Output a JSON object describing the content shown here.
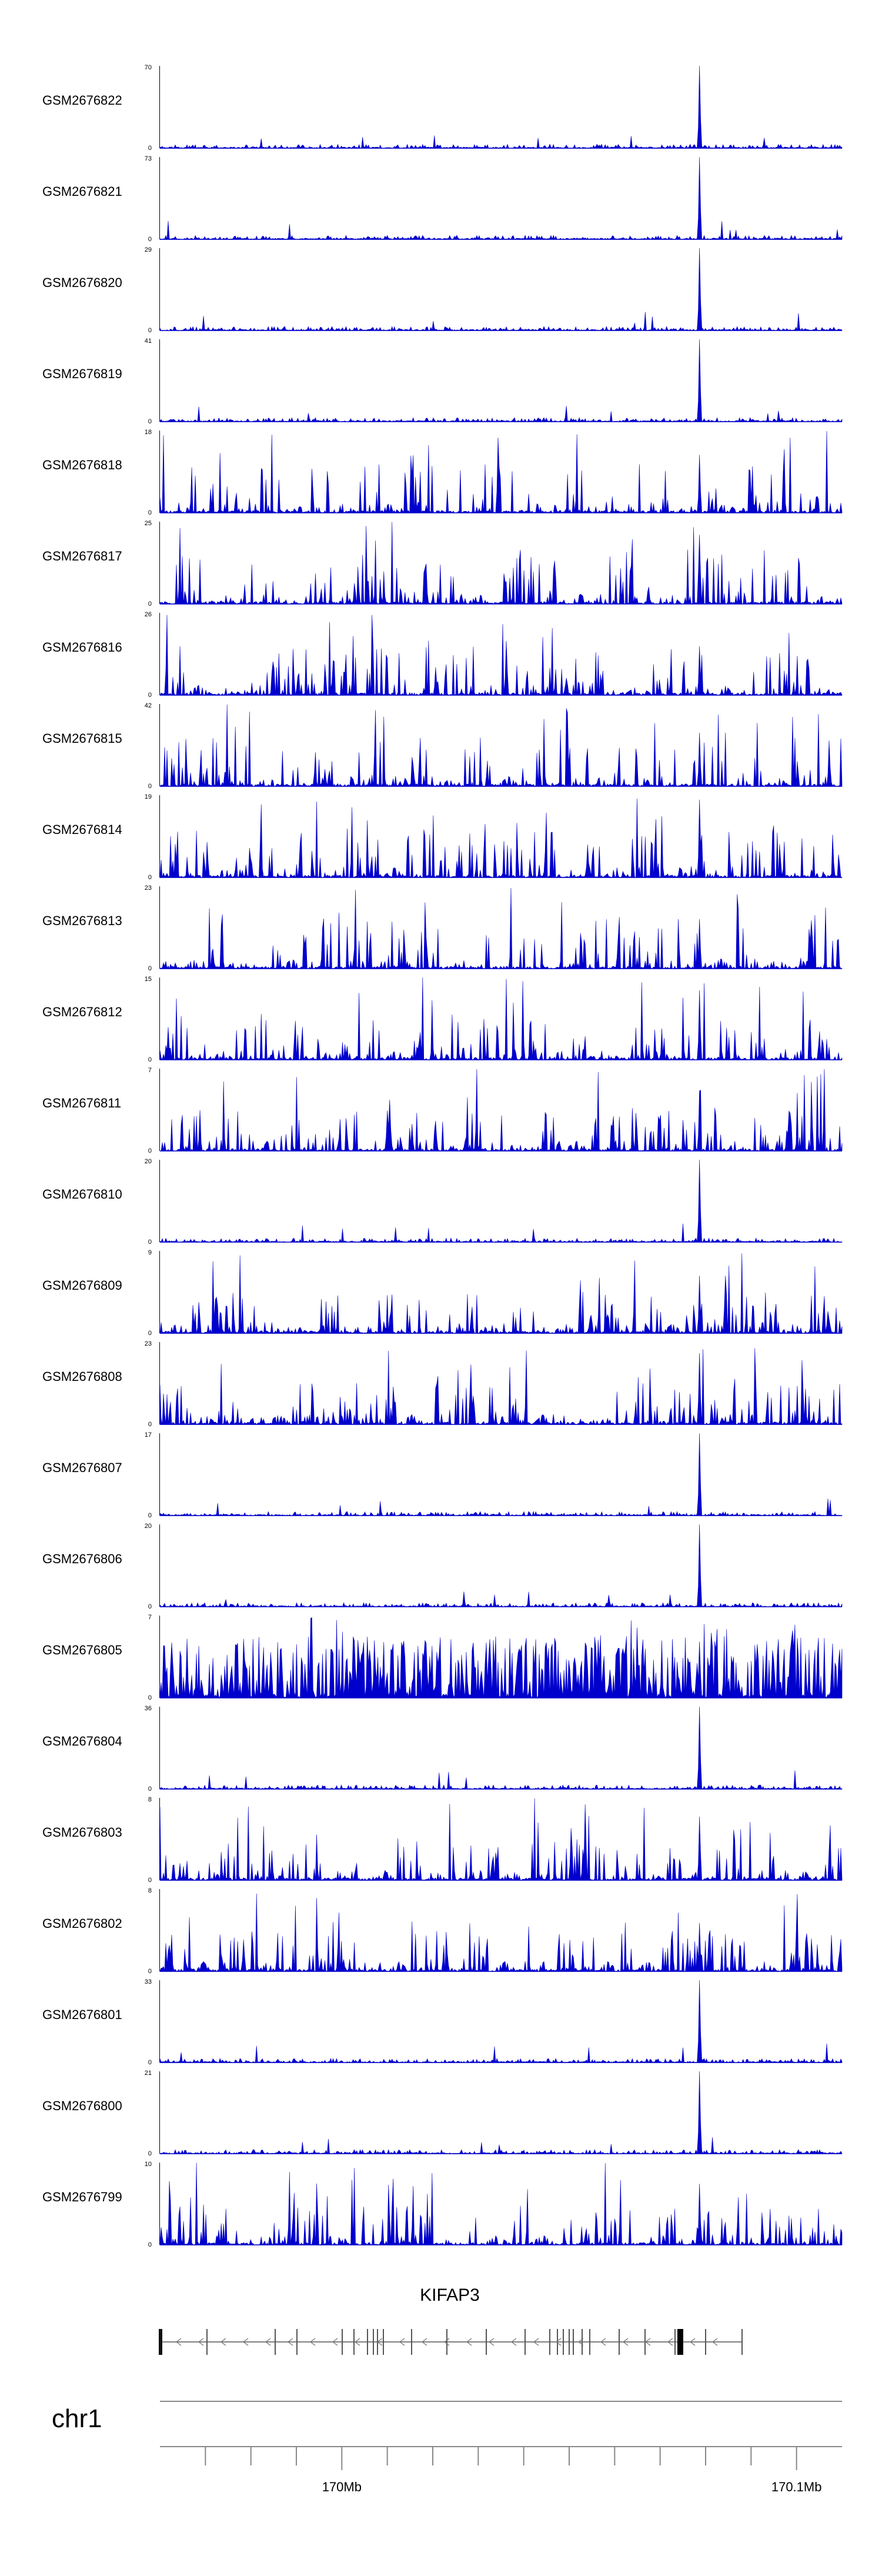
{
  "chart_data": {
    "type": "area",
    "colors": {
      "signal": "#0000cc",
      "axis": "#000000",
      "gene": "#555555"
    },
    "tracks": [
      {
        "name": "GSM2676822",
        "ymax": "70",
        "ymin": "0",
        "max_value": 70,
        "style": "peak"
      },
      {
        "name": "GSM2676821",
        "ymax": "73",
        "ymin": "0",
        "max_value": 73,
        "style": "peak"
      },
      {
        "name": "GSM2676820",
        "ymax": "29",
        "ymin": "0",
        "max_value": 29,
        "style": "peak"
      },
      {
        "name": "GSM2676819",
        "ymax": "41",
        "ymin": "0",
        "max_value": 41,
        "style": "peak"
      },
      {
        "name": "GSM2676818",
        "ymax": "18",
        "ymin": "0",
        "max_value": 18,
        "style": "broad"
      },
      {
        "name": "GSM2676817",
        "ymax": "25",
        "ymin": "0",
        "max_value": 25,
        "style": "broad"
      },
      {
        "name": "GSM2676816",
        "ymax": "26",
        "ymin": "0",
        "max_value": 26,
        "style": "broad"
      },
      {
        "name": "GSM2676815",
        "ymax": "42",
        "ymin": "0",
        "max_value": 42,
        "style": "broad"
      },
      {
        "name": "GSM2676814",
        "ymax": "19",
        "ymin": "0",
        "max_value": 19,
        "style": "broad"
      },
      {
        "name": "GSM2676813",
        "ymax": "23",
        "ymin": "0",
        "max_value": 23,
        "style": "broad"
      },
      {
        "name": "GSM2676812",
        "ymax": "15",
        "ymin": "0",
        "max_value": 15,
        "style": "noisy"
      },
      {
        "name": "GSM2676811",
        "ymax": "7",
        "ymin": "0",
        "max_value": 7,
        "style": "noisy"
      },
      {
        "name": "GSM2676810",
        "ymax": "20",
        "ymin": "0",
        "max_value": 20,
        "style": "peak"
      },
      {
        "name": "GSM2676809",
        "ymax": "9",
        "ymin": "0",
        "max_value": 9,
        "style": "noisy"
      },
      {
        "name": "GSM2676808",
        "ymax": "23",
        "ymin": "0",
        "max_value": 23,
        "style": "noisy"
      },
      {
        "name": "GSM2676807",
        "ymax": "17",
        "ymin": "0",
        "max_value": 17,
        "style": "peak"
      },
      {
        "name": "GSM2676806",
        "ymax": "20",
        "ymin": "0",
        "max_value": 20,
        "style": "peak"
      },
      {
        "name": "GSM2676805",
        "ymax": "7",
        "ymin": "0",
        "max_value": 7,
        "style": "dense"
      },
      {
        "name": "GSM2676804",
        "ymax": "36",
        "ymin": "0",
        "max_value": 36,
        "style": "peak"
      },
      {
        "name": "GSM2676803",
        "ymax": "8",
        "ymin": "0",
        "max_value": 8,
        "style": "noisy"
      },
      {
        "name": "GSM2676802",
        "ymax": "8",
        "ymin": "0",
        "max_value": 8,
        "style": "noisy"
      },
      {
        "name": "GSM2676801",
        "ymax": "33",
        "ymin": "0",
        "max_value": 33,
        "style": "peak"
      },
      {
        "name": "GSM2676800",
        "ymax": "21",
        "ymin": "0",
        "max_value": 21,
        "style": "peak"
      },
      {
        "name": "GSM2676799",
        "ymax": "10",
        "ymin": "0",
        "max_value": 10,
        "style": "noisy"
      }
    ],
    "gene": {
      "name": "KIFAP3",
      "strand": "-"
    },
    "chromosome": "chr1",
    "x_axis": {
      "range": [
        169.96,
        170.11
      ],
      "unit": "Mb",
      "ticks": [
        {
          "value": 169.97,
          "label": ""
        },
        {
          "value": 169.98,
          "label": ""
        },
        {
          "value": 169.99,
          "label": ""
        },
        {
          "value": 170.0,
          "label": "170Mb"
        },
        {
          "value": 170.01,
          "label": ""
        },
        {
          "value": 170.02,
          "label": ""
        },
        {
          "value": 170.03,
          "label": ""
        },
        {
          "value": 170.04,
          "label": ""
        },
        {
          "value": 170.05,
          "label": ""
        },
        {
          "value": 170.06,
          "label": ""
        },
        {
          "value": 170.07,
          "label": ""
        },
        {
          "value": 170.08,
          "label": ""
        },
        {
          "value": 170.09,
          "label": ""
        },
        {
          "value": 170.1,
          "label": "170.1Mb"
        }
      ]
    }
  }
}
